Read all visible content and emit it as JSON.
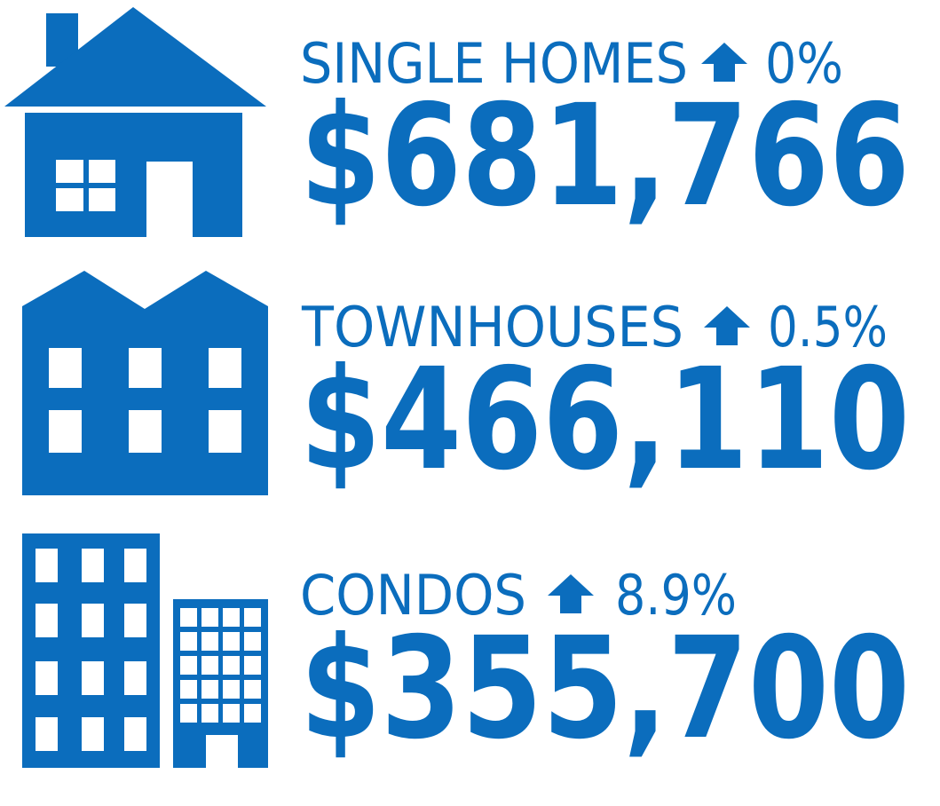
{
  "items": [
    {
      "label": "SINGLE HOMES",
      "change": "0%",
      "price": "$681,766"
    },
    {
      "label": "TOWNHOUSES",
      "change": "0.5%",
      "price": "$466,110"
    },
    {
      "label": "CONDOS",
      "change": "8.9%",
      "price": "$355,700"
    }
  ]
}
